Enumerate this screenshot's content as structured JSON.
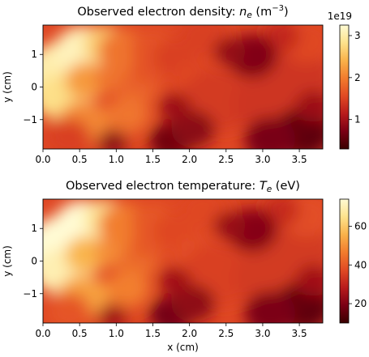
{
  "colors": {
    "map_stops": [
      "#3a0000",
      "#7a0014",
      "#b81c1c",
      "#e14a24",
      "#f27c2e",
      "#f9b24a",
      "#fde28c",
      "#fffbd4"
    ],
    "text": "#000000",
    "axis": "#000000"
  },
  "chart_data": [
    {
      "type": "heatmap",
      "title_prefix": "Observed electron density: ",
      "title_var": "n",
      "title_sub": "e",
      "title_unit_open": " (m",
      "title_exp": "−3",
      "title_unit_close": ")",
      "xlabel": "",
      "ylabel": "y (cm)",
      "xlim": [
        0,
        3.82
      ],
      "ylim": [
        -1.9,
        1.9
      ],
      "xticks": [
        0.0,
        0.5,
        1.0,
        1.5,
        2.0,
        2.5,
        3.0,
        3.5
      ],
      "xtick_labels": [
        "0.0",
        "0.5",
        "1.0",
        "1.5",
        "2.0",
        "2.5",
        "3.0",
        "3.5"
      ],
      "yticks": [
        1,
        0,
        -1
      ],
      "ytick_labels": [
        "1",
        "0",
        "−1"
      ],
      "colorbar": {
        "range": [
          0.3,
          3.25
        ],
        "ticks": [
          1,
          2,
          3
        ],
        "tick_labels": [
          "1",
          "2",
          "3"
        ],
        "offset_label": "1e19"
      }
    },
    {
      "type": "heatmap",
      "title_prefix": "Observed electron temperature: ",
      "title_var": "T",
      "title_sub": "e",
      "title_unit_open": " (eV)",
      "title_exp": "",
      "title_unit_close": "",
      "xlabel": "x (cm)",
      "ylabel": "y (cm)",
      "xlim": [
        0,
        3.82
      ],
      "ylim": [
        -1.9,
        1.9
      ],
      "xticks": [
        0.0,
        0.5,
        1.0,
        1.5,
        2.0,
        2.5,
        3.0,
        3.5
      ],
      "xtick_labels": [
        "0.0",
        "0.5",
        "1.0",
        "1.5",
        "2.0",
        "2.5",
        "3.0",
        "3.5"
      ],
      "yticks": [
        1,
        0,
        -1
      ],
      "ytick_labels": [
        "1",
        "0",
        "−1"
      ],
      "colorbar": {
        "range": [
          10,
          74
        ],
        "ticks": [
          20,
          40,
          60
        ],
        "tick_labels": [
          "20",
          "40",
          "60"
        ],
        "offset_label": ""
      }
    }
  ]
}
